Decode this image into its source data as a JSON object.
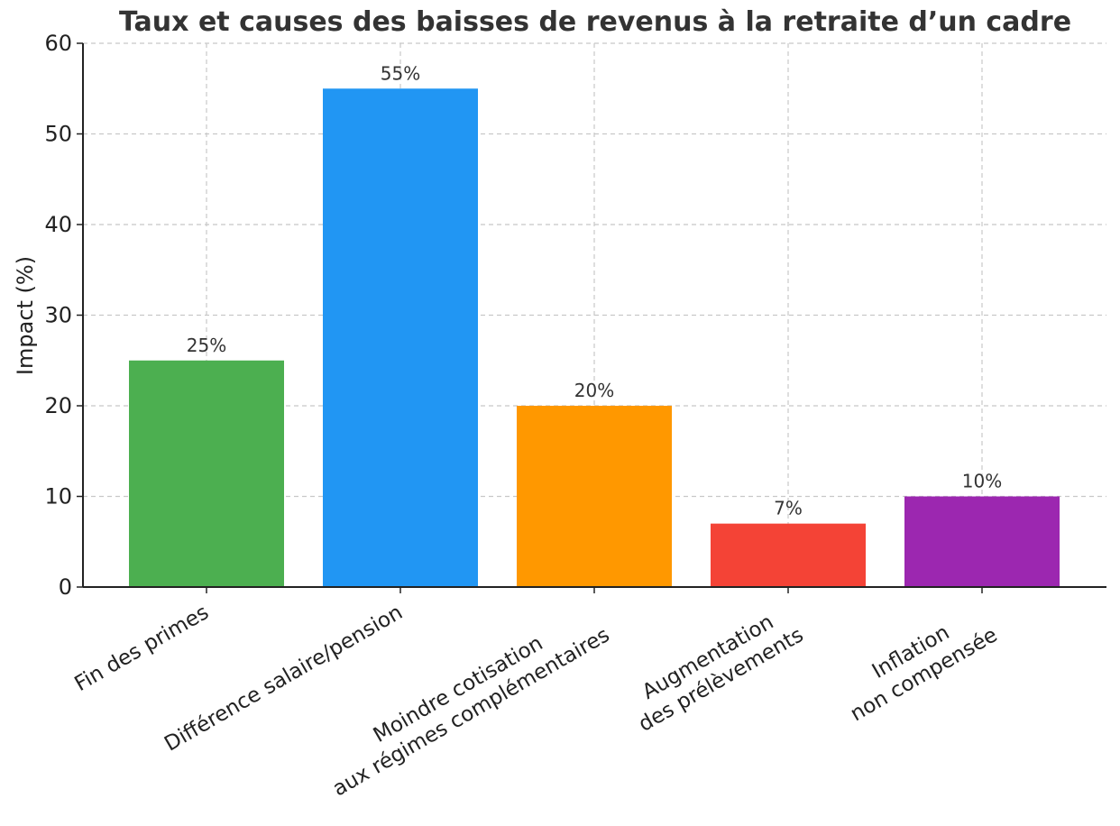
{
  "chart_data": {
    "type": "bar",
    "title": "Taux et causes des baisses de revenus à la retraite d’un cadre",
    "xlabel": "",
    "ylabel": "Impact (%)",
    "ylim": [
      0,
      60
    ],
    "yticks": [
      0,
      10,
      20,
      30,
      40,
      50,
      60
    ],
    "grid": true,
    "categories": [
      [
        "Fin des primes"
      ],
      [
        "Différence salaire/pension"
      ],
      [
        "Moindre cotisation",
        "aux régimes complémentaires"
      ],
      [
        "Augmentation",
        "des prélèvements"
      ],
      [
        "Inflation",
        "non compensée"
      ]
    ],
    "values": [
      25,
      55,
      20,
      7,
      10
    ],
    "data_labels": [
      "25%",
      "55%",
      "20%",
      "7%",
      "10%"
    ],
    "colors": [
      "#4caf50",
      "#2196f3",
      "#ff9800",
      "#f44336",
      "#9c27b0"
    ]
  }
}
